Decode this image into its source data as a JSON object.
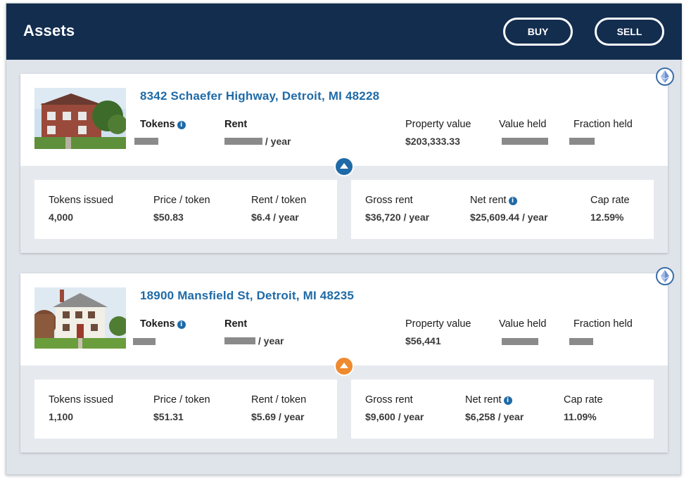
{
  "header": {
    "title": "Assets",
    "buy_label": "BUY",
    "sell_label": "SELL"
  },
  "assets": [
    {
      "address": "8342 Schaefer Highway, Detroit, MI 48228",
      "tokens_label": "Tokens",
      "rent_label": "Rent",
      "rent_suffix": "/ year",
      "property_value_label": "Property value",
      "property_value": "$203,333.33",
      "value_held_label": "Value held",
      "fraction_held_label": "Fraction held",
      "toggle_state": "expanded",
      "details_left": {
        "tokens_issued_label": "Tokens issued",
        "tokens_issued": "4,000",
        "price_token_label": "Price / token",
        "price_token": "$50.83",
        "rent_token_label": "Rent / token",
        "rent_token": "$6.4 / year"
      },
      "details_right": {
        "gross_rent_label": "Gross rent",
        "gross_rent": "$36,720 / year",
        "net_rent_label": "Net rent",
        "net_rent": "$25,609.44 / year",
        "cap_rate_label": "Cap rate",
        "cap_rate": "12.59%"
      }
    },
    {
      "address": "18900 Mansfield St, Detroit, MI 48235",
      "tokens_label": "Tokens",
      "rent_label": "Rent",
      "rent_suffix": "/ year",
      "property_value_label": "Property value",
      "property_value": "$56,441",
      "value_held_label": "Value held",
      "fraction_held_label": "Fraction held",
      "toggle_state": "collapsed",
      "details_left": {
        "tokens_issued_label": "Tokens issued",
        "tokens_issued": "1,100",
        "price_token_label": "Price / token",
        "price_token": "$51.31",
        "rent_token_label": "Rent / token",
        "rent_token": "$5.69 / year"
      },
      "details_right": {
        "gross_rent_label": "Gross rent",
        "gross_rent": "$9,600 / year",
        "net_rent_label": "Net rent",
        "net_rent": "$6,258 / year",
        "cap_rate_label": "Cap rate",
        "cap_rate": "11.09%"
      }
    }
  ],
  "colors": {
    "header_bg": "#132d4f",
    "link_blue": "#1f6aa7",
    "toggle_orange": "#ef8a2f",
    "panel_bg": "#dfe3ea"
  },
  "icons": {
    "info": "info-icon",
    "ethereum": "ethereum-icon",
    "toggle_up": "chevron-up-icon"
  }
}
